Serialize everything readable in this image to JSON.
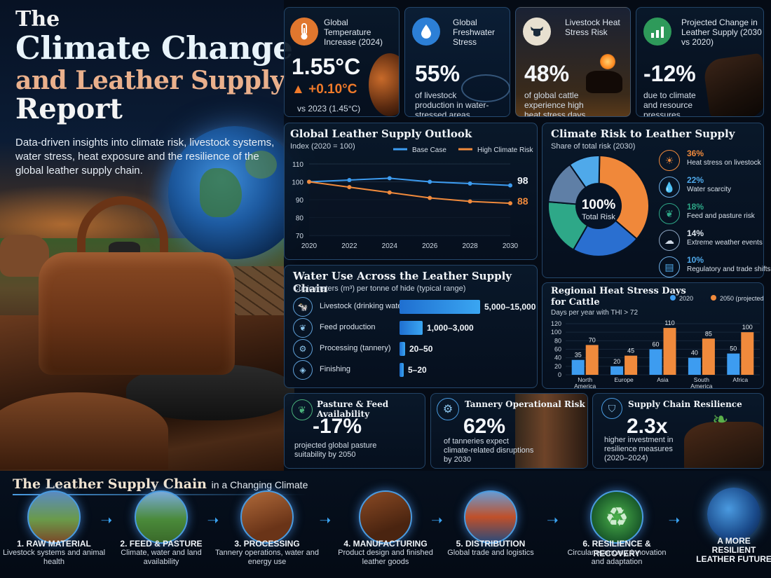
{
  "hero": {
    "title_the": "The",
    "title_line1": "Climate Change",
    "title_line2": "and Leather Supply",
    "title_line3": "Report",
    "description": "Data-driven insights into climate risk, livestock systems, water stress, heat exposure and the resilience of the global leather supply chain."
  },
  "kpis": [
    {
      "label": "Global Temperature Increase (2024)",
      "value": "1.55°C",
      "delta": "+0.10°C",
      "sub": "vs 2023 (1.45°C)",
      "icon": "thermometer-icon"
    },
    {
      "label": "Global Freshwater Stress",
      "value": "55%",
      "sub": "of livestock production in water-stressed areas",
      "icon": "water-drop-icon"
    },
    {
      "label": "Livestock Heat Stress Risk",
      "value": "48%",
      "sub": "of global cattle experience high heat stress days",
      "icon": "cow-icon"
    },
    {
      "label": "Projected Change in Leather Supply (2030 vs 2020)",
      "value": "-12%",
      "sub": "due to climate and resource pressures",
      "icon": "bar-chart-icon"
    }
  ],
  "outlook": {
    "title": "Global Leather Supply Outlook",
    "subtitle": "Index (2020 = 100)",
    "end_base": "98",
    "end_high": "88"
  },
  "risk": {
    "title": "Climate Risk to Leather Supply",
    "subtitle": "Share of total risk (2030)",
    "center_value": "100%",
    "center_label": "Total Risk"
  },
  "water": {
    "title": "Water Use Across the Leather Supply Chain",
    "subtitle": "Cubic meters (m³) per tonne of hide (typical range)"
  },
  "heat": {
    "title_line1": "Regional Heat Stress Days",
    "title_line2": "for Cattle",
    "subtitle": "Days per year with THI > 72"
  },
  "bottom_cards": [
    {
      "title": "Pasture & Feed Availability",
      "value": "-17%",
      "sub": "projected global pasture suitability by 2050",
      "icon": "sprout-icon"
    },
    {
      "title": "Tannery Operational Risk",
      "value": "62%",
      "sub": "of tanneries expect climate-related disruptions by 2030",
      "icon": "gear-icon"
    },
    {
      "title": "Supply Chain Resilience",
      "value": "2.3x",
      "sub": "higher investment in resilience measures (2020–2024)",
      "icon": "shield-leaf-icon"
    }
  ],
  "supply_chain": {
    "title_main": "The Leather Supply Chain",
    "title_tail": "in a Changing Climate",
    "steps": [
      {
        "title": "1. RAW MATERIAL",
        "desc": "Livestock systems and animal health"
      },
      {
        "title": "2. FEED & PASTURE",
        "desc": "Climate, water and land availability"
      },
      {
        "title": "3. PROCESSING",
        "desc": "Tannery operations, water and energy use"
      },
      {
        "title": "4. MANUFACTURING",
        "desc": "Product design and finished leather goods"
      },
      {
        "title": "5. DISTRIBUTION",
        "desc": "Global trade and logistics"
      },
      {
        "title": "6. RESILIENCE & RECOVERY",
        "desc": "Circular economy, innovation and adaptation"
      },
      {
        "title": "A MORE RESILIENT LEATHER FUTURE",
        "desc": ""
      }
    ]
  },
  "colors": {
    "base": "#3d9cf0",
    "high": "#f08a3c",
    "accent": "#4a9be0"
  },
  "chart_data": [
    {
      "type": "line",
      "title": "Global Leather Supply Outlook",
      "subtitle": "Index (2020 = 100)",
      "x": [
        2020,
        2022,
        2024,
        2026,
        2028,
        2030
      ],
      "xticks": [
        "2020",
        "2022",
        "2024",
        "2026",
        "2028",
        "2030"
      ],
      "yticks": [
        "70",
        "80",
        "90",
        "100",
        "110"
      ],
      "ylim": [
        70,
        110
      ],
      "legend": "top-right",
      "series": [
        {
          "name": "Base Case",
          "values": [
            100,
            101,
            102,
            100,
            99,
            98
          ]
        },
        {
          "name": "High Climate Risk",
          "values": [
            100,
            97,
            94,
            91,
            89,
            88
          ]
        }
      ]
    },
    {
      "type": "pie",
      "title": "Climate Risk to Leather Supply",
      "subtitle": "Share of total risk (2030)",
      "slices": [
        {
          "label": "Heat stress on livestock",
          "value": 36,
          "pct": "36%",
          "color": "#f0883a"
        },
        {
          "label": "Water scarcity",
          "value": 22,
          "pct": "22%",
          "color": "#2a6fd0"
        },
        {
          "label": "Feed and pasture risk",
          "value": 18,
          "pct": "18%",
          "color": "#2ea888"
        },
        {
          "label": "Extreme weather events",
          "value": 14,
          "pct": "14%",
          "color": "#5f7fa6"
        },
        {
          "label": "Regulatory and trade shifts",
          "value": 10,
          "pct": "10%",
          "color": "#4fa9ea"
        }
      ]
    },
    {
      "type": "bar",
      "title": "Water Use Across the Leather Supply Chain",
      "subtitle": "Cubic meters (m³) per tonne of hide (typical range)",
      "categories": [
        "Livestock (drinking water)",
        "Feed production",
        "Processing (tannery)",
        "Finishing"
      ],
      "values": [
        15000,
        3000,
        50,
        20
      ],
      "range_labels": [
        "5,000–15,000",
        "1,000–3,000",
        "20–50",
        "5–20"
      ],
      "icons": [
        "cow-icon",
        "leaf-icon",
        "gear-icon",
        "layers-icon"
      ]
    },
    {
      "type": "bar",
      "title": "Regional Heat Stress Days for Cattle",
      "subtitle": "Days per year with THI > 72",
      "categories": [
        "North America",
        "Europe",
        "Asia",
        "South America",
        "Africa"
      ],
      "ylim": [
        0,
        120
      ],
      "yticks": [
        "0",
        "20",
        "40",
        "60",
        "80",
        "100",
        "120"
      ],
      "legend": "top-right",
      "series": [
        {
          "name": "2020",
          "values": [
            35,
            20,
            60,
            40,
            50
          ],
          "color": "#3d9cf0"
        },
        {
          "name": "2050 (projected)",
          "values": [
            70,
            45,
            110,
            85,
            100
          ],
          "color": "#f08a3c"
        }
      ]
    }
  ]
}
